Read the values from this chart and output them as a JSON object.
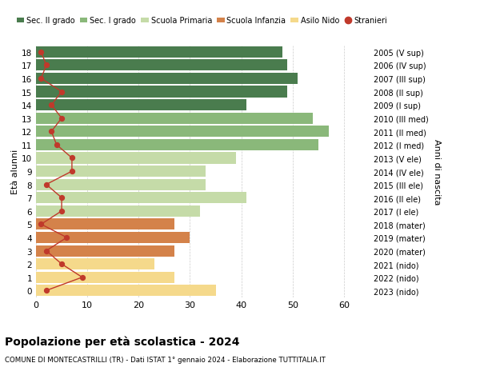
{
  "ages": [
    18,
    17,
    16,
    15,
    14,
    13,
    12,
    11,
    10,
    9,
    8,
    7,
    6,
    5,
    4,
    3,
    2,
    1,
    0
  ],
  "bar_values": [
    48,
    49,
    51,
    49,
    41,
    54,
    57,
    55,
    39,
    33,
    33,
    41,
    32,
    27,
    30,
    27,
    23,
    27,
    35
  ],
  "bar_colors": [
    "#4a7c4e",
    "#4a7c4e",
    "#4a7c4e",
    "#4a7c4e",
    "#4a7c4e",
    "#8ab87a",
    "#8ab87a",
    "#8ab87a",
    "#c5dba8",
    "#c5dba8",
    "#c5dba8",
    "#c5dba8",
    "#c5dba8",
    "#d4824a",
    "#d4824a",
    "#d4824a",
    "#f5d98b",
    "#f5d98b",
    "#f5d98b"
  ],
  "stranieri_values": [
    1,
    2,
    1,
    5,
    3,
    5,
    3,
    4,
    7,
    7,
    2,
    5,
    5,
    1,
    6,
    2,
    5,
    9,
    2
  ],
  "right_labels": [
    "2005 (V sup)",
    "2006 (IV sup)",
    "2007 (III sup)",
    "2008 (II sup)",
    "2009 (I sup)",
    "2010 (III med)",
    "2011 (II med)",
    "2012 (I med)",
    "2013 (V ele)",
    "2014 (IV ele)",
    "2015 (III ele)",
    "2016 (II ele)",
    "2017 (I ele)",
    "2018 (mater)",
    "2019 (mater)",
    "2020 (mater)",
    "2021 (nido)",
    "2022 (nido)",
    "2023 (nido)"
  ],
  "ylabel_left": "Età alunni",
  "ylabel_right": "Anni di nascita",
  "title": "Popolazione per età scolastica - 2024",
  "subtitle": "COMUNE DI MONTECASTRILLI (TR) - Dati ISTAT 1° gennaio 2024 - Elaborazione TUTTITALIA.IT",
  "xlim": [
    0,
    65
  ],
  "xticks": [
    0,
    10,
    20,
    30,
    40,
    50,
    60
  ],
  "legend_labels": [
    "Sec. II grado",
    "Sec. I grado",
    "Scuola Primaria",
    "Scuola Infanzia",
    "Asilo Nido",
    "Stranieri"
  ],
  "legend_colors": [
    "#4a7c4e",
    "#8ab87a",
    "#c5dba8",
    "#d4824a",
    "#f5d98b",
    "#c0392b"
  ],
  "stranieri_color": "#c0392b",
  "background_color": "#ffffff",
  "grid_color": "#cccccc"
}
